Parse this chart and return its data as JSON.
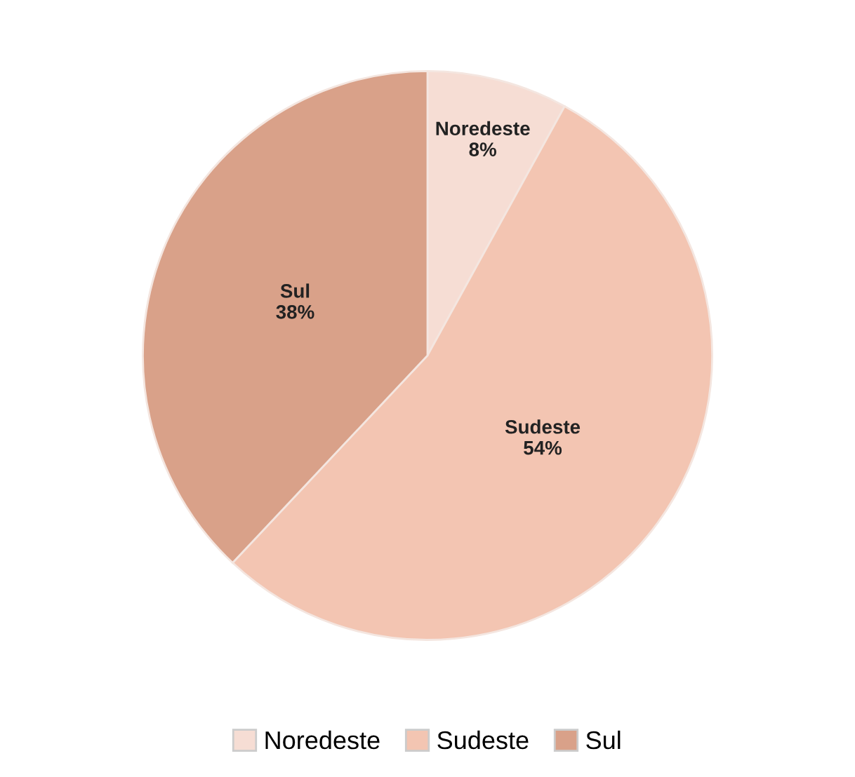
{
  "chart_data": {
    "type": "pie",
    "categories": [
      "Noredeste",
      "Sudeste",
      "Sul"
    ],
    "values": [
      8,
      54,
      38
    ],
    "value_labels": [
      "8%",
      "54%",
      "38%"
    ],
    "colors": [
      "#f6ddd4",
      "#f3c5b2",
      "#d9a189"
    ],
    "legend": "bottom"
  }
}
